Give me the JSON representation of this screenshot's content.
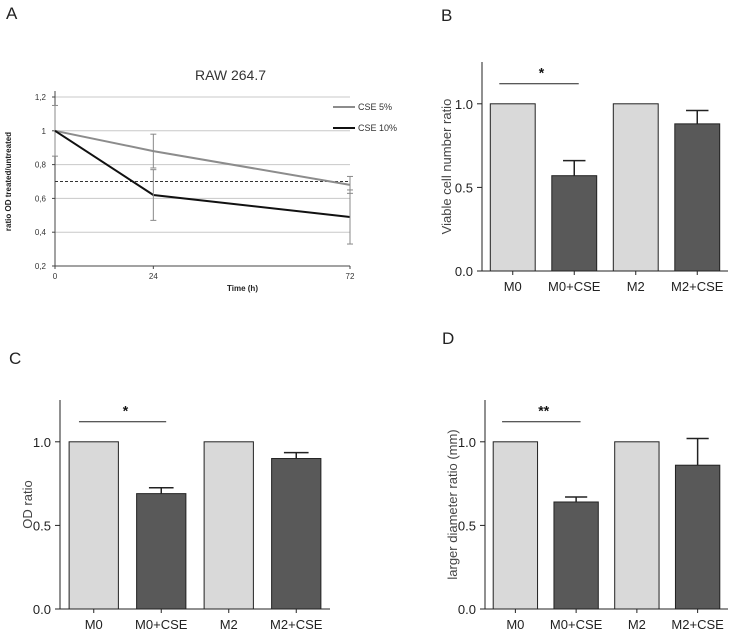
{
  "panels": {
    "A": {
      "letter": "A",
      "chart_data": {
        "type": "line",
        "title": "RAW 264.7",
        "xlabel": "Time (h)",
        "ylabel": "ratio OD treated/untreated",
        "x": [
          0,
          24,
          72
        ],
        "x_ticks": [
          "0",
          "24",
          "72"
        ],
        "y_ticks": [
          "0,2",
          "0,4",
          "0,6",
          "0,8",
          "1",
          "1,2"
        ],
        "ylim": [
          0.2,
          1.2
        ],
        "grid": true,
        "legend_position": "top-right",
        "reference_line": 0.7,
        "series": [
          {
            "name": "CSE 5%",
            "values": [
              1.0,
              0.88,
              0.68
            ],
            "errors": [
              0.15,
              0.1,
              0.05
            ],
            "color": "#8c8c8c"
          },
          {
            "name": "CSE 10%",
            "values": [
              1.0,
              0.62,
              0.49
            ],
            "errors": [
              0.0,
              0.15,
              0.16
            ],
            "color": "#111111"
          }
        ]
      }
    },
    "B": {
      "letter": "B",
      "chart_data": {
        "type": "bar",
        "categories": [
          "M0",
          "M0+CSE",
          "M2",
          "M2+CSE"
        ],
        "values": [
          1.0,
          0.57,
          1.0,
          0.88
        ],
        "errors": [
          0,
          0.09,
          0,
          0.08
        ],
        "bar_colors": [
          "#d9d9d9",
          "#595959",
          "#d9d9d9",
          "#595959"
        ],
        "ylabel": "Viable cell number ratio",
        "y_ticks": [
          "0.0",
          "0.5",
          "1.0"
        ],
        "ylim": [
          0,
          1.25
        ],
        "significance": {
          "from": "M0",
          "to": "M0+CSE",
          "label": "*"
        }
      }
    },
    "C": {
      "letter": "C",
      "chart_data": {
        "type": "bar",
        "categories": [
          "M0",
          "M0+CSE",
          "M2",
          "M2+CSE"
        ],
        "values": [
          1.0,
          0.69,
          1.0,
          0.9
        ],
        "errors": [
          0,
          0.035,
          0,
          0.035
        ],
        "bar_colors": [
          "#d9d9d9",
          "#595959",
          "#d9d9d9",
          "#595959"
        ],
        "ylabel": "OD ratio",
        "y_ticks": [
          "0.0",
          "0.5",
          "1.0"
        ],
        "ylim": [
          0,
          1.25
        ],
        "significance": {
          "from": "M0",
          "to": "M0+CSE",
          "label": "*"
        }
      }
    },
    "D": {
      "letter": "D",
      "chart_data": {
        "type": "bar",
        "categories": [
          "M0",
          "M0+CSE",
          "M2",
          "M2+CSE"
        ],
        "values": [
          1.0,
          0.64,
          1.0,
          0.86
        ],
        "errors": [
          0,
          0.03,
          0,
          0.16
        ],
        "bar_colors": [
          "#d9d9d9",
          "#595959",
          "#d9d9d9",
          "#595959"
        ],
        "ylabel": "larger diameter ratio (mm)",
        "y_ticks": [
          "0.0",
          "0.5",
          "1.0"
        ],
        "ylim": [
          0,
          1.25
        ],
        "significance": {
          "from": "M0",
          "to": "M0+CSE",
          "label": "**"
        }
      }
    }
  }
}
